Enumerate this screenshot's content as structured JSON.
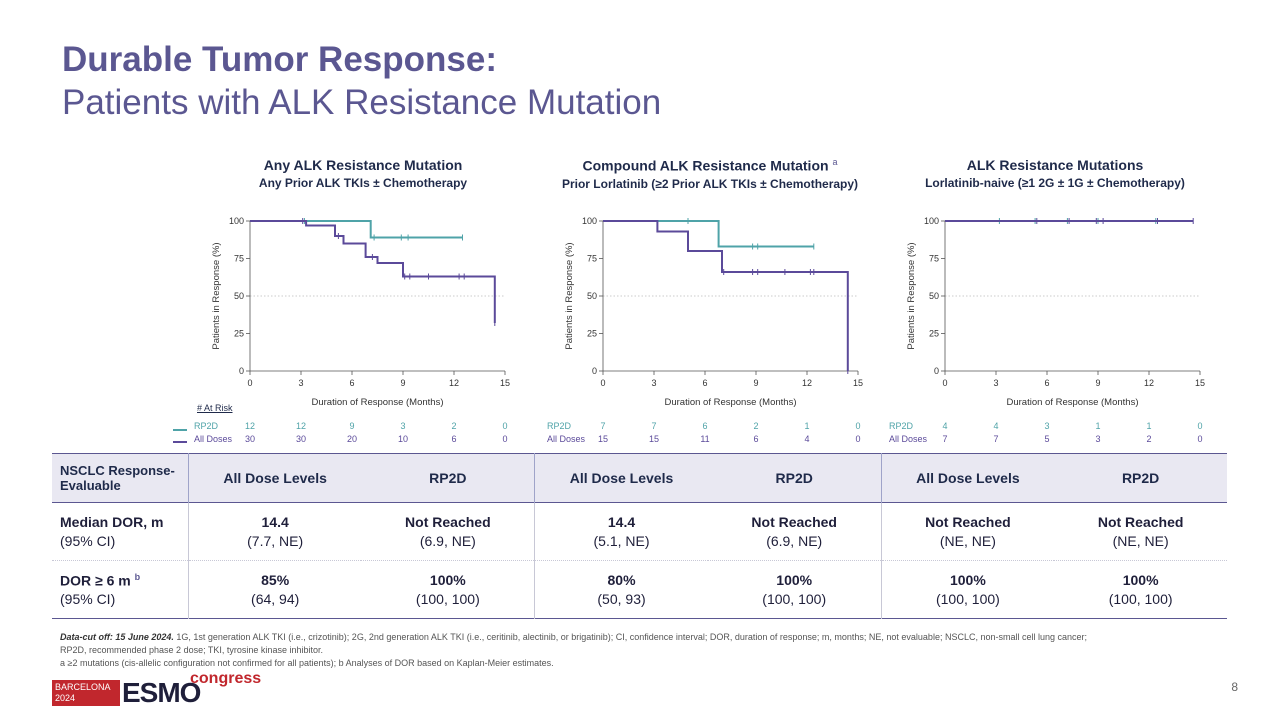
{
  "title": {
    "line1": "Durable Tumor Response:",
    "line2": "Patients with ALK Resistance Mutation"
  },
  "colors": {
    "rp2d": "#4fa3a8",
    "all_doses": "#5b4a9a",
    "title": "#5b5791"
  },
  "panels": [
    {
      "title": "Any ALK Resistance Mutation",
      "subtitle": "Any Prior ALK TKIs ± Chemotherapy",
      "sup": ""
    },
    {
      "title": "Compound ALK Resistance Mutation",
      "subtitle": "Prior Lorlatinib (≥2 Prior ALK TKIs ± Chemotherapy)",
      "sup": "a"
    },
    {
      "title": "ALK Resistance Mutations",
      "subtitle": "Lorlatinib-naive (≥1 2G ± 1G ± Chemotherapy)",
      "sup": ""
    }
  ],
  "chart_data": [
    {
      "type": "line",
      "step": true,
      "xlabel": "Duration of Response (Months)",
      "ylabel": "Patients in Response (%)",
      "xlim": [
        0,
        15
      ],
      "ylim": [
        0,
        100
      ],
      "xticks": [
        0,
        3,
        6,
        9,
        12,
        15
      ],
      "yticks": [
        0,
        25,
        50,
        75,
        100
      ],
      "reference_line": 50,
      "series": [
        {
          "name": "RP2D",
          "x": [
            0,
            7.1,
            7.1,
            12.5
          ],
          "y": [
            100,
            100,
            89,
            89
          ],
          "censor_x": [
            3.2,
            7.3,
            8.9,
            9.3,
            12.5
          ]
        },
        {
          "name": "All Doses",
          "x": [
            0,
            3.3,
            3.3,
            5.0,
            5.0,
            5.5,
            5.5,
            6.8,
            6.8,
            7.5,
            7.5,
            9.0,
            9.0,
            14.4,
            14.4
          ],
          "y": [
            100,
            100,
            97,
            97,
            90,
            90,
            85,
            85,
            76,
            76,
            72,
            72,
            63,
            63,
            32
          ],
          "censor_x": [
            3.1,
            5.2,
            7.2,
            9.1,
            9.4,
            10.5,
            12.3,
            12.6,
            14.4
          ]
        }
      ],
      "risk": {
        "x": [
          0,
          3,
          6,
          9,
          12,
          15
        ],
        "RP2D": [
          "12",
          "12",
          "9",
          "3",
          "2",
          "0"
        ],
        "All Doses": [
          "30",
          "30",
          "20",
          "10",
          "6",
          "0"
        ]
      }
    },
    {
      "type": "line",
      "step": true,
      "xlabel": "Duration of Response (Months)",
      "ylabel": "Patients in Response (%)",
      "xlim": [
        0,
        15
      ],
      "ylim": [
        0,
        100
      ],
      "xticks": [
        0,
        3,
        6,
        9,
        12,
        15
      ],
      "yticks": [
        0,
        25,
        50,
        75,
        100
      ],
      "reference_line": 50,
      "series": [
        {
          "name": "RP2D",
          "x": [
            0,
            6.8,
            6.8,
            12.4
          ],
          "y": [
            100,
            100,
            83,
            83
          ],
          "censor_x": [
            5.0,
            8.8,
            9.1,
            12.4
          ]
        },
        {
          "name": "All Doses",
          "x": [
            0,
            3.2,
            3.2,
            5.0,
            5.0,
            7.0,
            7.0,
            14.4,
            14.4
          ],
          "y": [
            100,
            100,
            93,
            93,
            80,
            80,
            66,
            66,
            0
          ],
          "censor_x": [
            7.1,
            8.8,
            9.1,
            10.7,
            12.2,
            12.4,
            14.4
          ]
        }
      ],
      "risk": {
        "x": [
          0,
          3,
          6,
          9,
          12,
          15
        ],
        "RP2D": [
          "7",
          "7",
          "6",
          "2",
          "1",
          "0"
        ],
        "All Doses": [
          "15",
          "15",
          "11",
          "6",
          "4",
          "0"
        ]
      }
    },
    {
      "type": "line",
      "step": true,
      "xlabel": "Duration of Response (Months)",
      "ylabel": "Patients in Response (%)",
      "xlim": [
        0,
        15
      ],
      "ylim": [
        0,
        100
      ],
      "xticks": [
        0,
        3,
        6,
        9,
        12,
        15
      ],
      "yticks": [
        0,
        25,
        50,
        75,
        100
      ],
      "reference_line": 50,
      "series": [
        {
          "name": "RP2D",
          "x": [
            0,
            14.6
          ],
          "y": [
            100,
            100
          ],
          "censor_x": [
            3.2,
            5.3,
            7.2,
            9.0,
            12.4
          ]
        },
        {
          "name": "All Doses",
          "x": [
            0,
            14.6
          ],
          "y": [
            100,
            100
          ],
          "censor_x": [
            5.4,
            7.3,
            8.9,
            9.3,
            12.5,
            14.6
          ]
        }
      ],
      "risk": {
        "x": [
          0,
          3,
          6,
          9,
          12,
          15
        ],
        "RP2D": [
          "4",
          "4",
          "3",
          "1",
          "1",
          "0"
        ],
        "All Doses": [
          "7",
          "7",
          "5",
          "3",
          "2",
          "0"
        ]
      }
    }
  ],
  "risk_header": "# At Risk",
  "risk_labels": {
    "rp2d": "RP2D",
    "all": "All Doses"
  },
  "table": {
    "header_first": "NSCLC Response-\nEvaluable",
    "headers": [
      "All Dose Levels",
      "RP2D",
      "All Dose Levels",
      "RP2D",
      "All Dose Levels",
      "RP2D"
    ],
    "rows": [
      {
        "label": "Median DOR, m",
        "sublabel": "(95% CI)",
        "sup": "",
        "values": [
          "14.4",
          "Not Reached",
          "14.4",
          "Not Reached",
          "Not Reached",
          "Not Reached"
        ],
        "cis": [
          "(7.7, NE)",
          "(6.9, NE)",
          "(5.1, NE)",
          "(6.9, NE)",
          "(NE, NE)",
          "(NE, NE)"
        ]
      },
      {
        "label": "DOR ≥ 6 m",
        "sublabel": "(95% CI)",
        "sup": "b",
        "values": [
          "85%",
          "100%",
          "80%",
          "100%",
          "100%",
          "100%"
        ],
        "cis": [
          "(64, 94)",
          "(100, 100)",
          "(50, 93)",
          "(100, 100)",
          "(100, 100)",
          "(100, 100)"
        ]
      }
    ]
  },
  "footnote": {
    "line1_prefix": "Data-cut off: 15 June 2024.",
    "line1": "1G, 1st generation ALK TKI (i.e., crizotinib); 2G, 2nd generation ALK TKI (i.e., ceritinib, alectinib, or brigatinib); CI, confidence interval; DOR, duration of response; m, months; NE, not evaluable; NSCLC, non-small cell lung cancer;",
    "line2": "RP2D, recommended phase 2 dose; TKI, tyrosine kinase inhibitor.",
    "line3": "a ≥2 mutations (cis-allelic configuration not confirmed for all patients); b Analyses of DOR based on Kaplan-Meier estimates."
  },
  "logo": {
    "city": "BARCELONA",
    "year": "2024",
    "brand": "ESMO",
    "word": "congress"
  },
  "page_number": "8"
}
